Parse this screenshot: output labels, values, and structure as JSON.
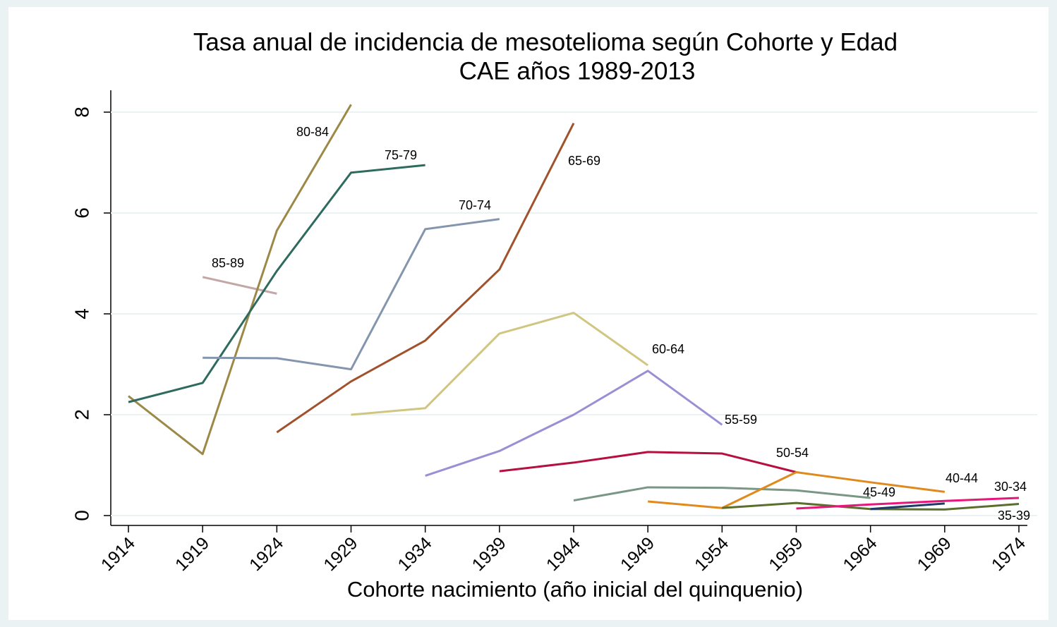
{
  "chart_data": {
    "type": "line",
    "title": "Tasa anual de incidencia de mesotelioma según Cohorte y Edad",
    "subtitle": "CAE años 1989-2013",
    "x_label": "Cohorte nacimiento (año inicial del quinquenio)",
    "x": [
      1914,
      1919,
      1924,
      1929,
      1934,
      1939,
      1944,
      1949,
      1954,
      1959,
      1964,
      1969,
      1974
    ],
    "xlim": [
      1914,
      1974
    ],
    "xticks": [
      1914,
      1919,
      1924,
      1929,
      1934,
      1939,
      1944,
      1949,
      1954,
      1959,
      1964,
      1969,
      1974
    ],
    "ylim": [
      0,
      8
    ],
    "yticks": [
      0,
      2,
      4,
      6,
      8
    ],
    "grid": true,
    "series": [
      {
        "name": "85-89",
        "color": "#c4a6a6",
        "values": [
          null,
          4.73,
          4.4,
          null,
          null,
          null,
          null,
          null,
          null,
          null,
          null,
          null,
          null
        ]
      },
      {
        "name": "80-84",
        "color": "#9c8847",
        "values": [
          2.37,
          1.22,
          5.65,
          8.15,
          null,
          null,
          null,
          null,
          null,
          null,
          null,
          null,
          null
        ]
      },
      {
        "name": "75-79",
        "color": "#2e6b5e",
        "values": [
          2.25,
          2.63,
          4.85,
          6.8,
          6.95,
          null,
          null,
          null,
          null,
          null,
          null,
          null,
          null
        ]
      },
      {
        "name": "70-74",
        "color": "#8496ad",
        "values": [
          null,
          3.13,
          3.12,
          2.9,
          5.68,
          5.88,
          null,
          null,
          null,
          null,
          null,
          null,
          null
        ]
      },
      {
        "name": "65-69",
        "color": "#a0522d",
        "values": [
          null,
          null,
          1.65,
          2.66,
          3.47,
          4.88,
          7.78,
          null,
          null,
          null,
          null,
          null,
          null
        ]
      },
      {
        "name": "60-64",
        "color": "#d1c582",
        "values": [
          null,
          null,
          null,
          2.0,
          2.13,
          3.61,
          4.02,
          2.98,
          null,
          null,
          null,
          null,
          null
        ]
      },
      {
        "name": "55-59",
        "color": "#9b8fd4",
        "values": [
          null,
          null,
          null,
          null,
          0.79,
          1.28,
          2.0,
          2.87,
          1.8,
          null,
          null,
          null,
          null
        ]
      },
      {
        "name": "50-54",
        "color": "#b5103f",
        "values": [
          null,
          null,
          null,
          null,
          null,
          0.88,
          1.05,
          1.26,
          1.23,
          0.86,
          null,
          null,
          null
        ]
      },
      {
        "name": "45-49",
        "color": "#7a9685",
        "values": [
          null,
          null,
          null,
          null,
          null,
          null,
          0.3,
          0.56,
          0.55,
          0.5,
          0.35,
          null,
          null
        ]
      },
      {
        "name": "40-44",
        "color": "#e08a1e",
        "values": [
          null,
          null,
          null,
          null,
          null,
          null,
          null,
          0.28,
          0.15,
          0.86,
          0.66,
          0.47,
          null
        ]
      },
      {
        "name": "35-39",
        "color": "#5a6e2e",
        "values": [
          null,
          null,
          null,
          null,
          null,
          null,
          null,
          null,
          0.15,
          0.25,
          0.13,
          0.12,
          0.23
        ]
      },
      {
        "color": "#1f3a68",
        "values": [
          null,
          null,
          null,
          null,
          null,
          null,
          null,
          null,
          null,
          null,
          0.13,
          0.24,
          null
        ]
      },
      {
        "name": "30-34",
        "color": "#e6177a",
        "values": [
          null,
          null,
          null,
          null,
          null,
          null,
          null,
          null,
          null,
          0.14,
          0.22,
          0.29,
          0.35
        ]
      }
    ]
  }
}
